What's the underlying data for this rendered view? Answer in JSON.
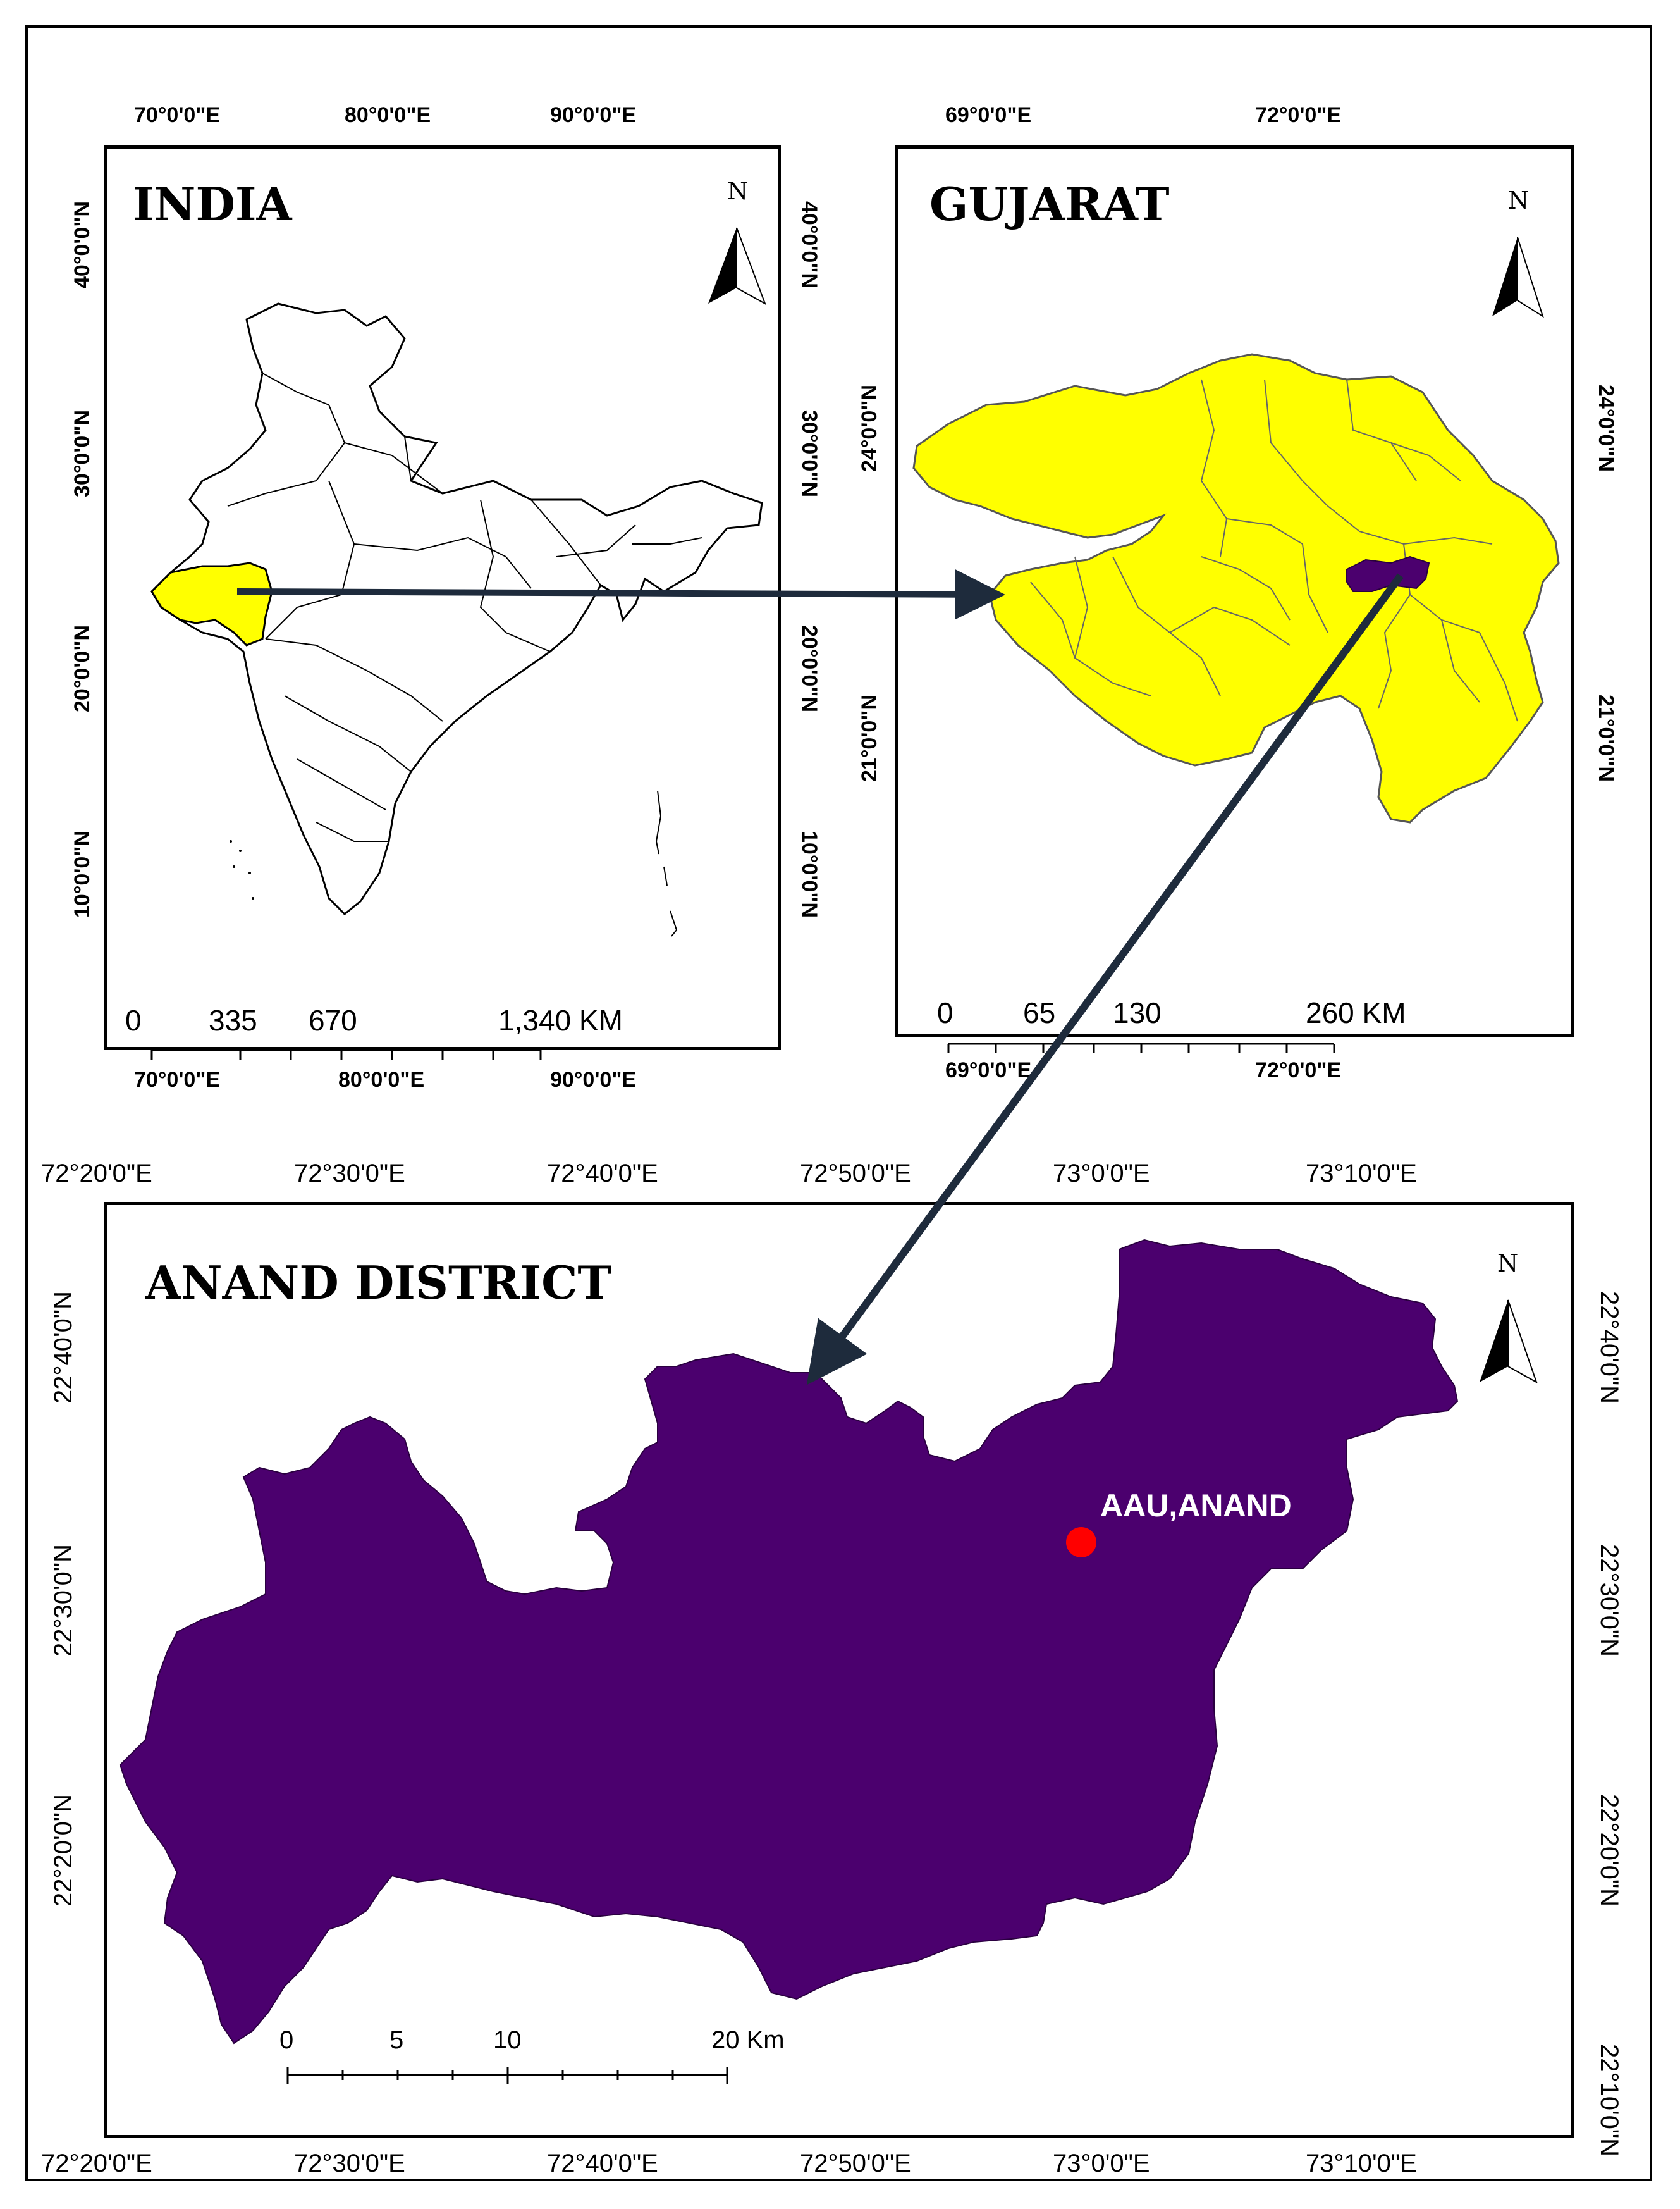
{
  "colors": {
    "india_fill": "#ffffff",
    "gujarat_fill": "#ffff00",
    "anand_fill": "#4b006e",
    "arrow": "#1e2b3c",
    "point": "#ff0000",
    "label_text": "#ffffff"
  },
  "north_letter": "N",
  "india": {
    "title": "INDIA",
    "top_ticks": [
      "70°0'0\"E",
      "80°0'0\"E",
      "90°0'0\"E"
    ],
    "bottom_ticks": [
      "70°0'0\"E",
      "80°0'0\"E",
      "90°0'0\"E"
    ],
    "left_ticks": [
      "40°0'0\"N",
      "30°0'0\"N",
      "20°0'0\"N",
      "10°0'0\"N"
    ],
    "right_ticks": [
      "40°0'0\"N",
      "30°0'0\"N",
      "20°0'0\"N",
      "10°0'0\"N"
    ],
    "scale_labels": [
      "0",
      "335",
      "670",
      "1,340 KM"
    ]
  },
  "gujarat": {
    "title": "GUJARAT",
    "top_ticks": [
      "69°0'0\"E",
      "72°0'0\"E"
    ],
    "bottom_ticks": [
      "69°0'0\"E",
      "72°0'0\"E"
    ],
    "left_ticks": [
      "24°0'0\"N",
      "21°0'0\"N"
    ],
    "right_ticks": [
      "24°0'0\"N",
      "21°0'0\"N"
    ],
    "scale_labels": [
      "0",
      "65",
      "130",
      "260 KM"
    ]
  },
  "anand": {
    "title": "ANAND DISTRICT",
    "top_ticks": [
      "72°20'0\"E",
      "72°30'0\"E",
      "72°40'0\"E",
      "72°50'0\"E",
      "73°0'0\"E",
      "73°10'0\"E"
    ],
    "bottom_ticks": [
      "72°20'0\"E",
      "72°30'0\"E",
      "72°40'0\"E",
      "72°50'0\"E",
      "73°0'0\"E",
      "73°10'0\"E"
    ],
    "left_ticks": [
      "22°40'0\"N",
      "22°30'0\"N",
      "22°20'0\"N"
    ],
    "right_ticks": [
      "22°40'0\"N",
      "22°30'0\"N",
      "22°20'0\"N",
      "22°10'0\"N"
    ],
    "scale_labels": [
      "0",
      "5",
      "10",
      "20 Km"
    ],
    "location_label": "AAU,ANAND"
  }
}
